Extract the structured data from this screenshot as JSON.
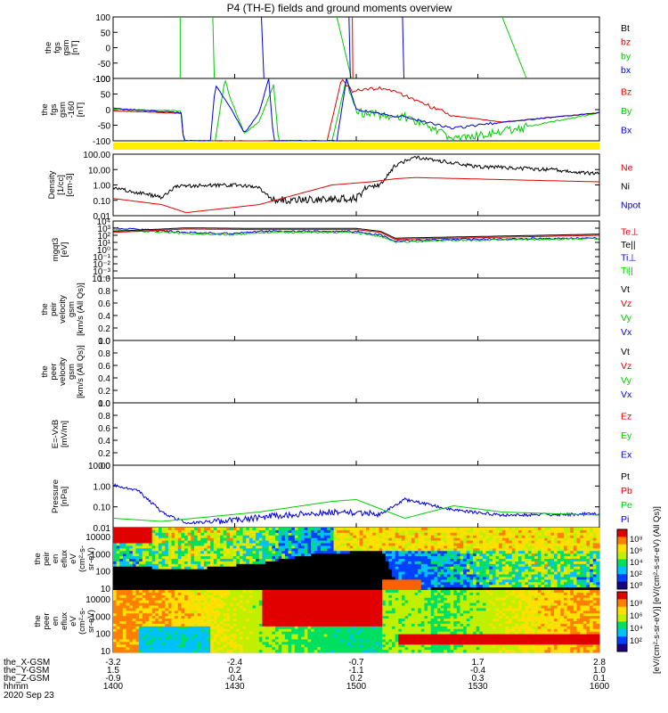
{
  "title": "P4 (TH-E) fields and ground moments overview",
  "colors": {
    "black": "#000000",
    "red": "#e00000",
    "green": "#00cc00",
    "blue": "#0000dd",
    "yellow": "#ffee00"
  },
  "chart_data": [
    {
      "type": "line",
      "ylabel": [
        "the",
        "fgs",
        "gsm",
        "[nT]"
      ],
      "yticks": [
        "100",
        "50",
        "0",
        "-50",
        "-100"
      ],
      "legend": [
        {
          "name": "Bt",
          "color": "black"
        },
        {
          "name": "bz",
          "color": "red"
        },
        {
          "name": "by",
          "color": "green"
        },
        {
          "name": "bx",
          "color": "blue"
        }
      ]
    },
    {
      "type": "line",
      "ylabel": [
        "the",
        "fgs",
        "gsm",
        "-160",
        "[nT]"
      ],
      "yticks": [
        "100",
        "50",
        "0",
        "-50",
        "-100"
      ],
      "legend": [
        {
          "name": "Bz",
          "color": "red"
        },
        {
          "name": "By",
          "color": "green"
        },
        {
          "name": "Bx",
          "color": "blue"
        }
      ]
    },
    {
      "type": "line",
      "ylabel": [
        "Density",
        "[1/cc]",
        "[cm-3]"
      ],
      "yscale": "log",
      "yticks": [
        "100.00",
        "10.00",
        "1.00",
        "0.10",
        "0.01"
      ],
      "legend": [
        {
          "name": "Ne",
          "color": "red"
        },
        {
          "name": "Ni",
          "color": "black"
        },
        {
          "name": "Npot",
          "color": "blue"
        }
      ]
    },
    {
      "type": "line",
      "ylabel": [
        "mgqt3",
        "[eV]"
      ],
      "yscale": "log",
      "yticks": [
        "10⁴",
        "10³",
        "10²",
        "10¹",
        "10⁰",
        "10⁻¹",
        "10⁻²",
        "10⁻³",
        "10⁻⁴"
      ],
      "legend": [
        {
          "name": "Te⊥",
          "color": "red"
        },
        {
          "name": "Te||",
          "color": "black"
        },
        {
          "name": "Ti⊥",
          "color": "blue"
        },
        {
          "name": "Ti||",
          "color": "green"
        }
      ]
    },
    {
      "type": "line",
      "ylabel": [
        "the",
        "peir",
        "velocity",
        "gsm",
        "[km/s (All Qs)]"
      ],
      "yticks": [
        "1.0",
        "0.8",
        "0.6",
        "0.4",
        "0.2",
        "0.0"
      ],
      "legend": [
        {
          "name": "Vt",
          "color": "black"
        },
        {
          "name": "Vz",
          "color": "red"
        },
        {
          "name": "Vy",
          "color": "green"
        },
        {
          "name": "Vx",
          "color": "blue"
        }
      ]
    },
    {
      "type": "line",
      "ylabel": [
        "the",
        "peer",
        "velocity",
        "gsm",
        "[km/s (All Qs)]"
      ],
      "yticks": [
        "1.0",
        "0.8",
        "0.6",
        "0.4",
        "0.2",
        "0.0"
      ],
      "legend": [
        {
          "name": "Vt",
          "color": "black"
        },
        {
          "name": "Vz",
          "color": "red"
        },
        {
          "name": "Vy",
          "color": "green"
        },
        {
          "name": "Vx",
          "color": "blue"
        }
      ]
    },
    {
      "type": "line",
      "ylabel": [
        "E=-VxB",
        "[mV/m]"
      ],
      "yticks": [
        "1.0",
        "0.8",
        "0.6",
        "0.4",
        "0.2",
        "0.0"
      ],
      "legend": [
        {
          "name": "Ez",
          "color": "red"
        },
        {
          "name": "Ey",
          "color": "green"
        },
        {
          "name": "Ex",
          "color": "blue"
        }
      ]
    },
    {
      "type": "line",
      "ylabel": [
        "Pressure",
        "[nPa]"
      ],
      "yscale": "log",
      "yticks": [
        "10.00",
        "1.00",
        "0.10",
        "0.01"
      ],
      "legend": [
        {
          "name": "Pt",
          "color": "black"
        },
        {
          "name": "Pb",
          "color": "red"
        },
        {
          "name": "Pe",
          "color": "green"
        },
        {
          "name": "Pi",
          "color": "blue"
        }
      ]
    },
    {
      "type": "heatmap",
      "ylabel": [
        "the",
        "peir",
        "en",
        "eflux",
        "eV",
        "(cm²-s-",
        "sr-eV)"
      ],
      "yscale": "log",
      "yticks": [
        "10000",
        "1000",
        "100",
        "10"
      ]
    },
    {
      "type": "heatmap",
      "ylabel": [
        "the",
        "peer",
        "en",
        "eflux",
        "eV",
        "(cm²-s-",
        "sr-eV)"
      ],
      "yscale": "log",
      "yticks": [
        "10000",
        "1000",
        "100",
        "10"
      ]
    }
  ],
  "colorbar": {
    "upper_ticks": [
      "10⁸",
      "10⁶",
      "10⁴",
      "10²",
      "10⁰"
    ],
    "lower_ticks": [
      "10⁸",
      "10⁶",
      "10⁴",
      "10²"
    ],
    "label": "[eV/(cm²-s-sr-eV)] [eV/(cm²-s-sr-eV) (All Qs)]"
  },
  "x_axis": {
    "ticks": [
      {
        "time": "1400",
        "x_gsm": "-3.2",
        "y_gsm": "1.5",
        "z_gsm": "-0.9"
      },
      {
        "time": "1430",
        "x_gsm": "-2.4",
        "y_gsm": "0.2",
        "z_gsm": "-0.4"
      },
      {
        "time": "1500",
        "x_gsm": "-0.7",
        "y_gsm": "-1.1",
        "z_gsm": "0.2"
      },
      {
        "time": "1530",
        "x_gsm": "1.7",
        "y_gsm": "-0.4",
        "z_gsm": "0.3"
      },
      {
        "time": "1600",
        "x_gsm": "2.8",
        "y_gsm": "1.0",
        "z_gsm": "0.1"
      }
    ],
    "row_labels": [
      "the_X-GSM",
      "the_Y-GSM",
      "the_Z-GSM",
      "hhmm"
    ],
    "date": "2020 Sep 23"
  }
}
